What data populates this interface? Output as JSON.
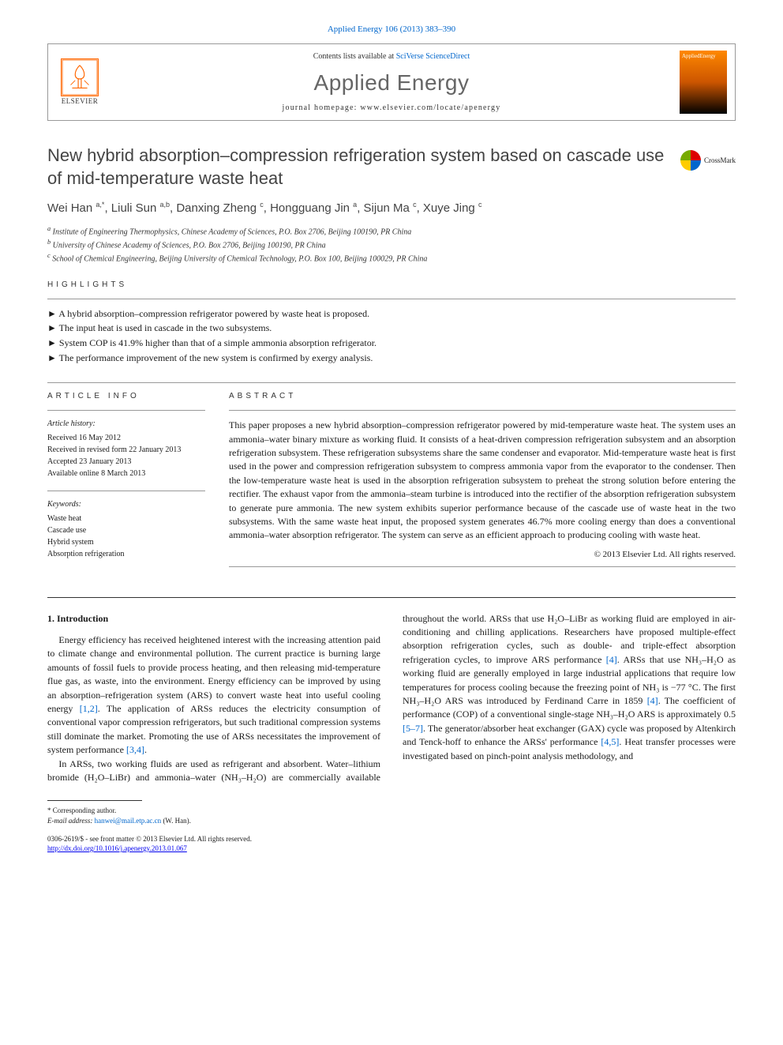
{
  "header": {
    "citation": "Applied Energy 106 (2013) 383–390",
    "contents_prefix": "Contents lists available at ",
    "contents_link": "SciVerse ScienceDirect",
    "journal_name": "Applied Energy",
    "homepage_prefix": "journal homepage: ",
    "homepage_url": "www.elsevier.com/locate/apenergy",
    "publisher_label": "ELSEVIER",
    "cover_label": "AppliedEnergy"
  },
  "crossmark_label": "CrossMark",
  "title": "New hybrid absorption–compression refrigeration system based on cascade use of mid-temperature waste heat",
  "authors_html": "Wei Han <sup>a,*</sup>, Liuli Sun <sup>a,b</sup>, Danxing Zheng <sup>c</sup>, Hongguang Jin <sup>a</sup>, Sijun Ma <sup>c</sup>, Xuye Jing <sup>c</sup>",
  "affiliations": [
    "a Institute of Engineering Thermophysics, Chinese Academy of Sciences, P.O. Box 2706, Beijing 100190, PR China",
    "b University of Chinese Academy of Sciences, P.O. Box 2706, Beijing 100190, PR China",
    "c School of Chemical Engineering, Beijing University of Chemical Technology, P.O. Box 100, Beijing 100029, PR China"
  ],
  "headings": {
    "highlights": "highlights",
    "article_info": "article info",
    "abstract": "abstract"
  },
  "highlights": [
    "A hybrid absorption–compression refrigerator powered by waste heat is proposed.",
    "The input heat is used in cascade in the two subsystems.",
    "System COP is 41.9% higher than that of a simple ammonia absorption refrigerator.",
    "The performance improvement of the new system is confirmed by exergy analysis."
  ],
  "article_info": {
    "history_label": "Article history:",
    "history": [
      "Received 16 May 2012",
      "Received in revised form 22 January 2013",
      "Accepted 23 January 2013",
      "Available online 8 March 2013"
    ],
    "keywords_label": "Keywords:",
    "keywords": [
      "Waste heat",
      "Cascade use",
      "Hybrid system",
      "Absorption refrigeration"
    ]
  },
  "abstract": "This paper proposes a new hybrid absorption–compression refrigerator powered by mid-temperature waste heat. The system uses an ammonia–water binary mixture as working fluid. It consists of a heat-driven compression refrigeration subsystem and an absorption refrigeration subsystem. These refrigeration subsystems share the same condenser and evaporator. Mid-temperature waste heat is first used in the power and compression refrigeration subsystem to compress ammonia vapor from the evaporator to the condenser. Then the low-temperature waste heat is used in the absorption refrigeration subsystem to preheat the strong solution before entering the rectifier. The exhaust vapor from the ammonia–steam turbine is introduced into the rectifier of the absorption refrigeration subsystem to generate pure ammonia. The new system exhibits superior performance because of the cascade use of waste heat in the two subsystems. With the same waste heat input, the proposed system generates 46.7% more cooling energy than does a conventional ammonia–water absorption refrigerator. The system can serve as an efficient approach to producing cooling with waste heat.",
  "copyright": "© 2013 Elsevier Ltd. All rights reserved.",
  "intro_heading": "1. Introduction",
  "intro_left": "Energy efficiency has received heightened interest with the increasing attention paid to climate change and environmental pollution. The current practice is burning large amounts of fossil fuels to provide process heating, and then releasing mid-temperature flue gas, as waste, into the environment. Energy efficiency can be improved by using an absorption–refrigeration system (ARS) to convert waste heat into useful cooling energy [1,2]. The application of ARSs reduces the electricity consumption of conventional vapor compression refrigerators, but such traditional compression systems still dominate the market. Promoting the use of ARSs necessitates the improvement of system performance [3,4].",
  "intro_right": "In ARSs, two working fluids are used as refrigerant and absorbent. Water–lithium bromide (H₂O–LiBr) and ammonia–water (NH₃–H₂O) are commercially available throughout the world. ARSs that use H₂O–LiBr as working fluid are employed in air-conditioning and chilling applications. Researchers have proposed multiple-effect absorption refrigeration cycles, such as double- and triple-effect absorption refrigeration cycles, to improve ARS performance [4]. ARSs that use NH₃–H₂O as working fluid are generally employed in large industrial applications that require low temperatures for process cooling because the freezing point of NH₃ is −77 °C. The first NH₃–H₂O ARS was introduced by Ferdinand Carre in 1859 [4]. The coefficient of performance (COP) of a conventional single-stage NH₃–H₂O ARS is approximately 0.5 [5–7]. The generator/absorber heat exchanger (GAX) cycle was proposed by Altenkirch and Tenck-hoff to enhance the ARSs' performance [4,5]. Heat transfer processes were investigated based on pinch-point analysis methodology, and",
  "footnote": {
    "corresponding": "* Corresponding author.",
    "email_label": "E-mail address: ",
    "email": "hanwei@mail.etp.ac.cn",
    "email_suffix": " (W. Han)."
  },
  "bottom": {
    "line1": "0306-2619/$ - see front matter © 2013 Elsevier Ltd. All rights reserved.",
    "doi_url": "http://dx.doi.org/10.1016/j.apenergy.2013.01.067"
  },
  "refs": {
    "r12": "[1,2]",
    "r34": "[3,4]",
    "r4": "[4]",
    "r57": "[5–7]",
    "r45": "[4,5]"
  }
}
